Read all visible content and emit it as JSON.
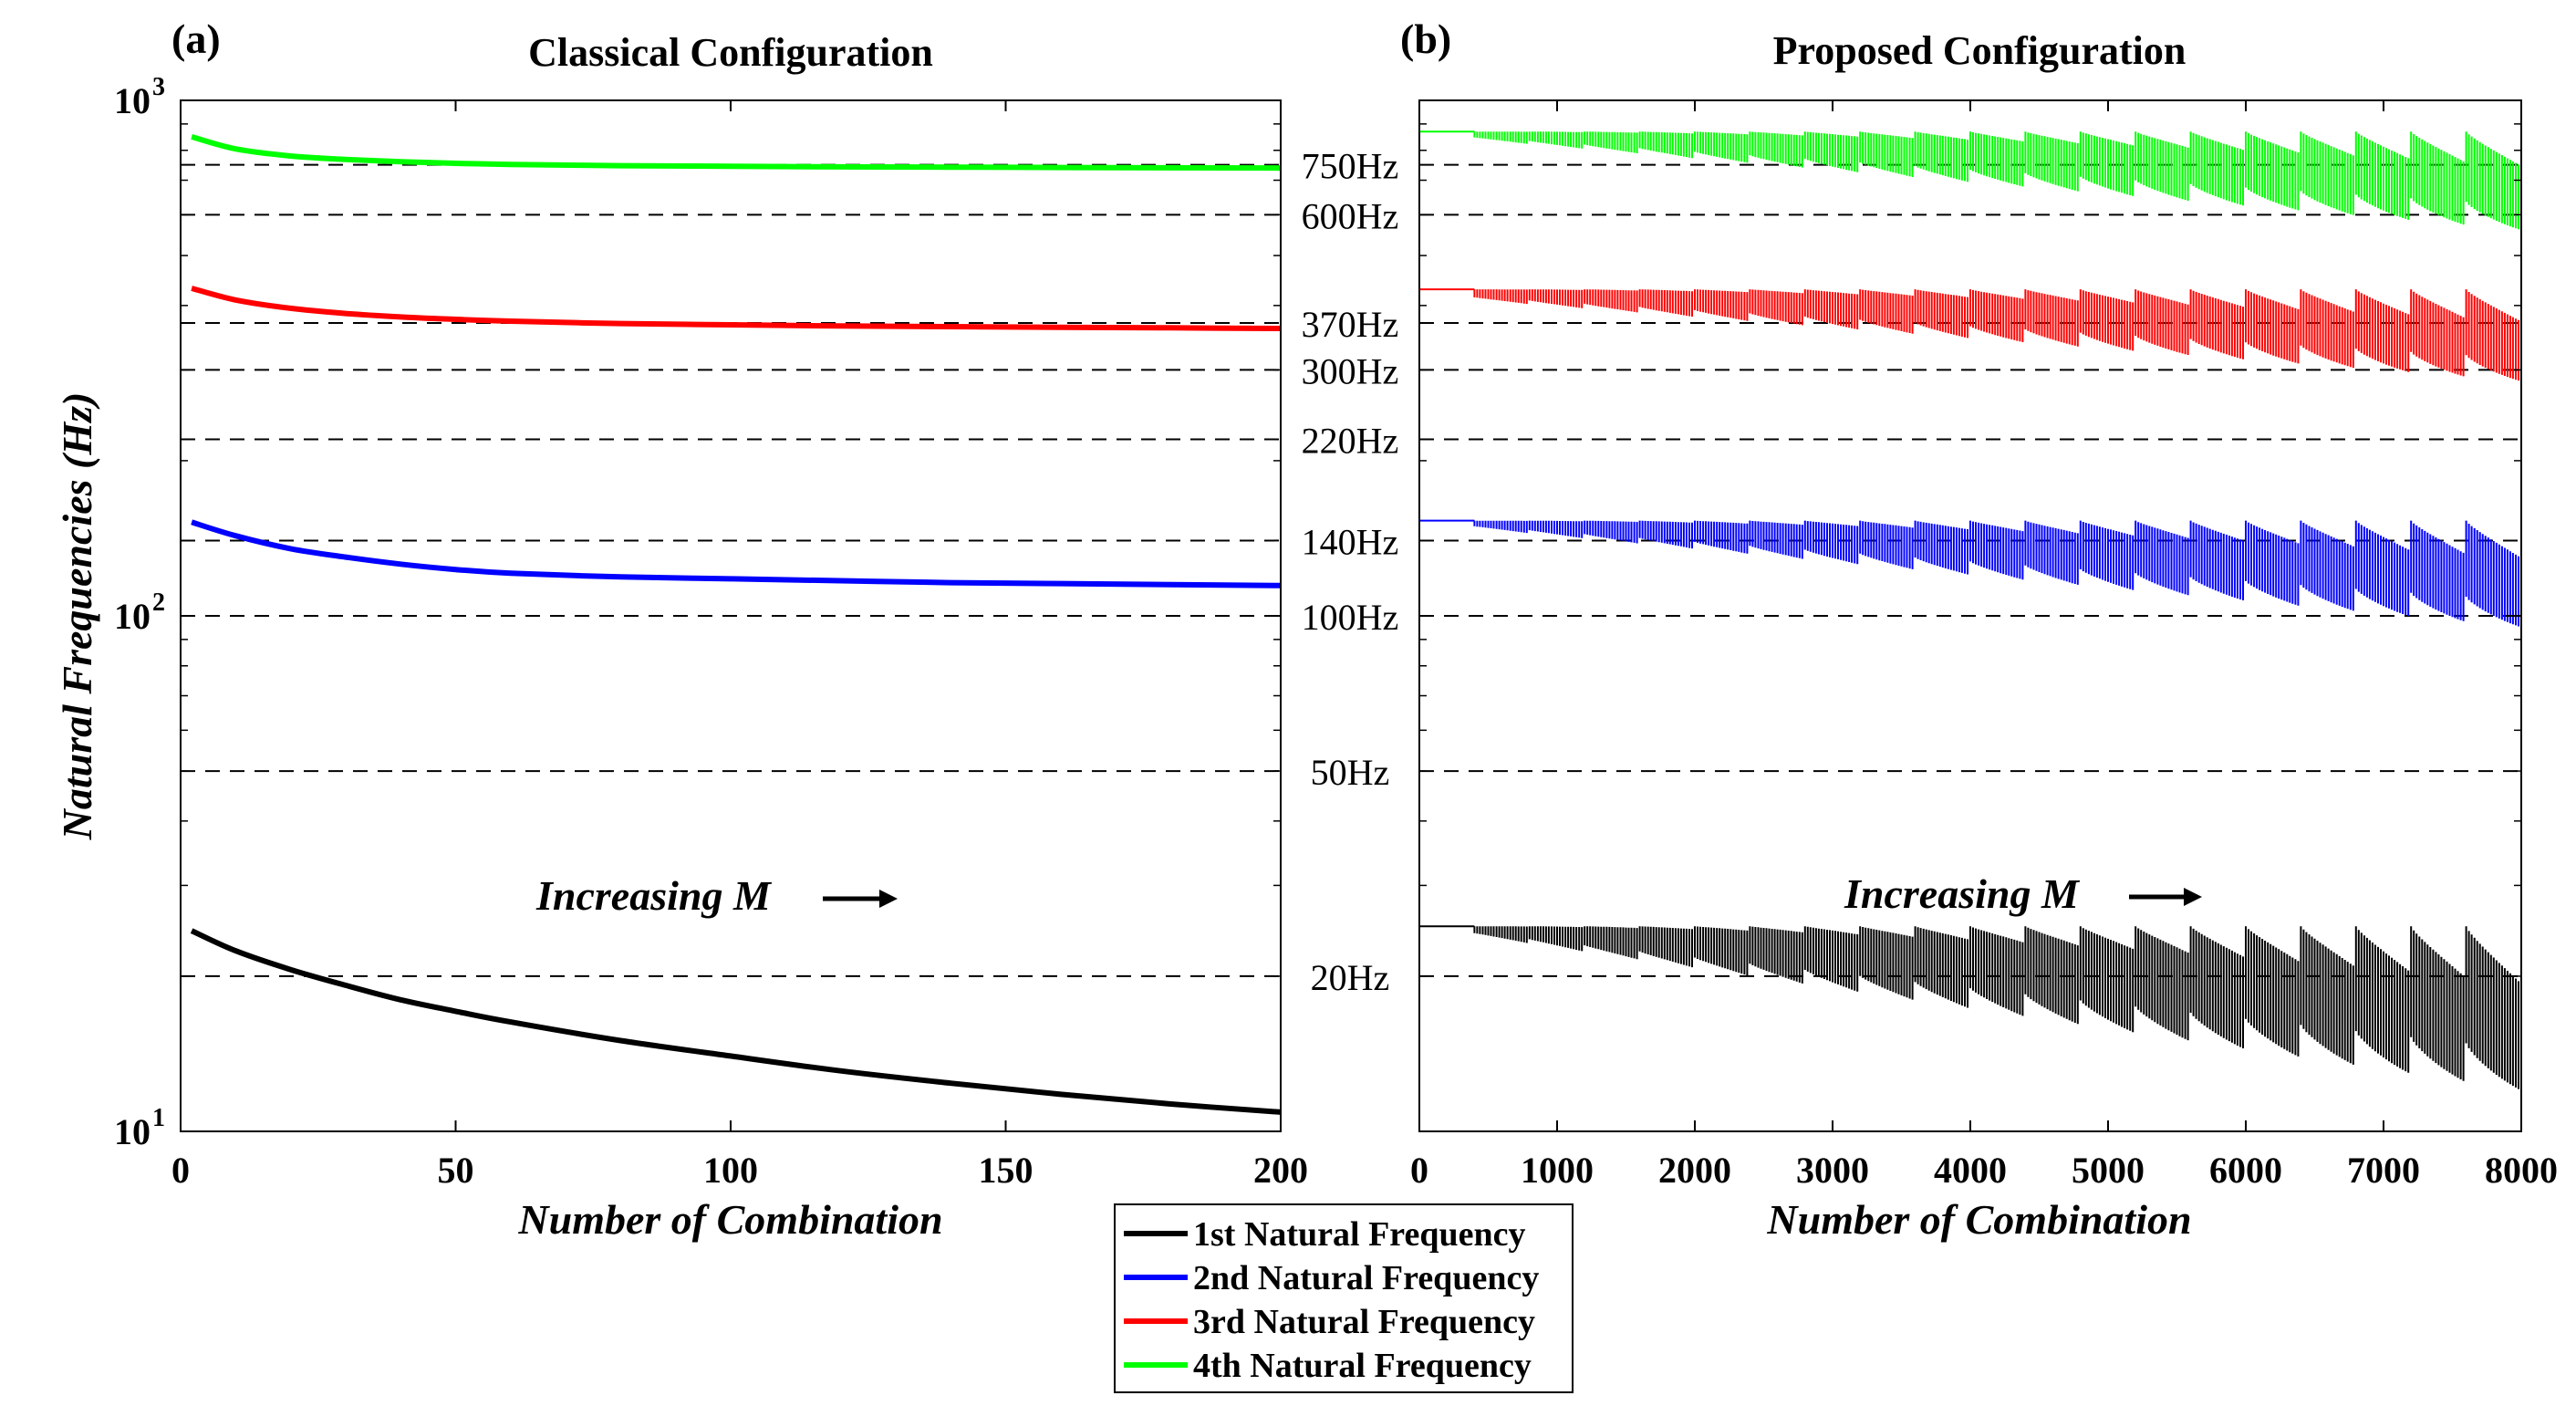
{
  "chart_data": [
    {
      "panel_label": "(a)",
      "type": "line",
      "title": "Classical Configuration",
      "xlabel": "Number of Combination",
      "ylabel": "Natural Frequencies (Hz)",
      "yscale": "log",
      "xlim": [
        0,
        200
      ],
      "ylim": [
        10,
        1000
      ],
      "xticks": [
        0,
        50,
        100,
        150,
        200
      ],
      "yticks": [
        {
          "base": "10",
          "exp": "1"
        },
        {
          "base": "10",
          "exp": "2"
        },
        {
          "base": "10",
          "exp": "3"
        }
      ],
      "annotation": "Increasing M",
      "series": [
        {
          "name": "1st Natural Frequency",
          "color": "#000000",
          "x": [
            2,
            10,
            20,
            30,
            40,
            50,
            60,
            80,
            100,
            120,
            140,
            160,
            180,
            200
          ],
          "y": [
            24.5,
            22.4,
            20.6,
            19.2,
            18.0,
            17.1,
            16.3,
            15.0,
            14.0,
            13.1,
            12.4,
            11.8,
            11.3,
            10.9
          ]
        },
        {
          "name": "2nd Natural Frequency",
          "color": "#0000ff",
          "x": [
            2,
            10,
            20,
            30,
            40,
            50,
            60,
            80,
            100,
            120,
            140,
            160,
            180,
            200
          ],
          "y": [
            152,
            143,
            135,
            130,
            126,
            123,
            121,
            119,
            118,
            117,
            116,
            115.5,
            115,
            114.5
          ]
        },
        {
          "name": "3rd Natural Frequency",
          "color": "#ff0000",
          "x": [
            2,
            10,
            20,
            30,
            40,
            50,
            60,
            80,
            100,
            120,
            140,
            160,
            180,
            200
          ],
          "y": [
            432,
            410,
            395,
            386,
            380,
            376,
            373,
            369,
            367,
            365,
            364,
            363,
            362,
            361
          ]
        },
        {
          "name": "4th Natural Frequency",
          "color": "#00ff00",
          "x": [
            2,
            10,
            20,
            30,
            40,
            50,
            60,
            80,
            100,
            120,
            140,
            160,
            180,
            200
          ],
          "y": [
            850,
            805,
            780,
            768,
            760,
            755,
            751,
            747,
            745,
            743,
            742,
            741,
            740,
            739
          ]
        }
      ]
    },
    {
      "panel_label": "(b)",
      "type": "line",
      "title": "Proposed Configuration",
      "xlabel": "Number of Combination",
      "yscale": "log",
      "xlim": [
        0,
        8000
      ],
      "ylim": [
        10,
        1000
      ],
      "xticks": [
        0,
        1000,
        2000,
        3000,
        4000,
        5000,
        6000,
        7000,
        8000
      ],
      "annotation": "Increasing M",
      "series": [
        {
          "name": "1st Natural Frequency",
          "color": "#000000",
          "top": 25.0,
          "min_start": 24.0,
          "min_end": 12.0
        },
        {
          "name": "2nd Natural Frequency",
          "color": "#0000ff",
          "top": 153,
          "min_start": 148,
          "min_end": 95
        },
        {
          "name": "3rd Natural Frequency",
          "color": "#ff0000",
          "top": 430,
          "min_start": 410,
          "min_end": 285
        },
        {
          "name": "4th Natural Frequency",
          "color": "#00ff00",
          "top": 870,
          "min_start": 840,
          "min_end": 560
        }
      ]
    }
  ],
  "reference_lines": [
    {
      "label": "750Hz",
      "value": 750
    },
    {
      "label": "600Hz",
      "value": 600
    },
    {
      "label": "370Hz",
      "value": 370
    },
    {
      "label": "300Hz",
      "value": 300
    },
    {
      "label": "220Hz",
      "value": 220
    },
    {
      "label": "140Hz",
      "value": 140
    },
    {
      "label": "100Hz",
      "value": 100
    },
    {
      "label": "50Hz",
      "value": 50
    },
    {
      "label": "20Hz",
      "value": 20
    }
  ],
  "legend": {
    "placement": "bottom-center",
    "entries": [
      {
        "label": "1st Natural Frequency",
        "color": "#000000"
      },
      {
        "label": "2nd Natural Frequency",
        "color": "#0000ff"
      },
      {
        "label": "3rd Natural Frequency",
        "color": "#ff0000"
      },
      {
        "label": "4th Natural Frequency",
        "color": "#00ff00"
      }
    ]
  }
}
